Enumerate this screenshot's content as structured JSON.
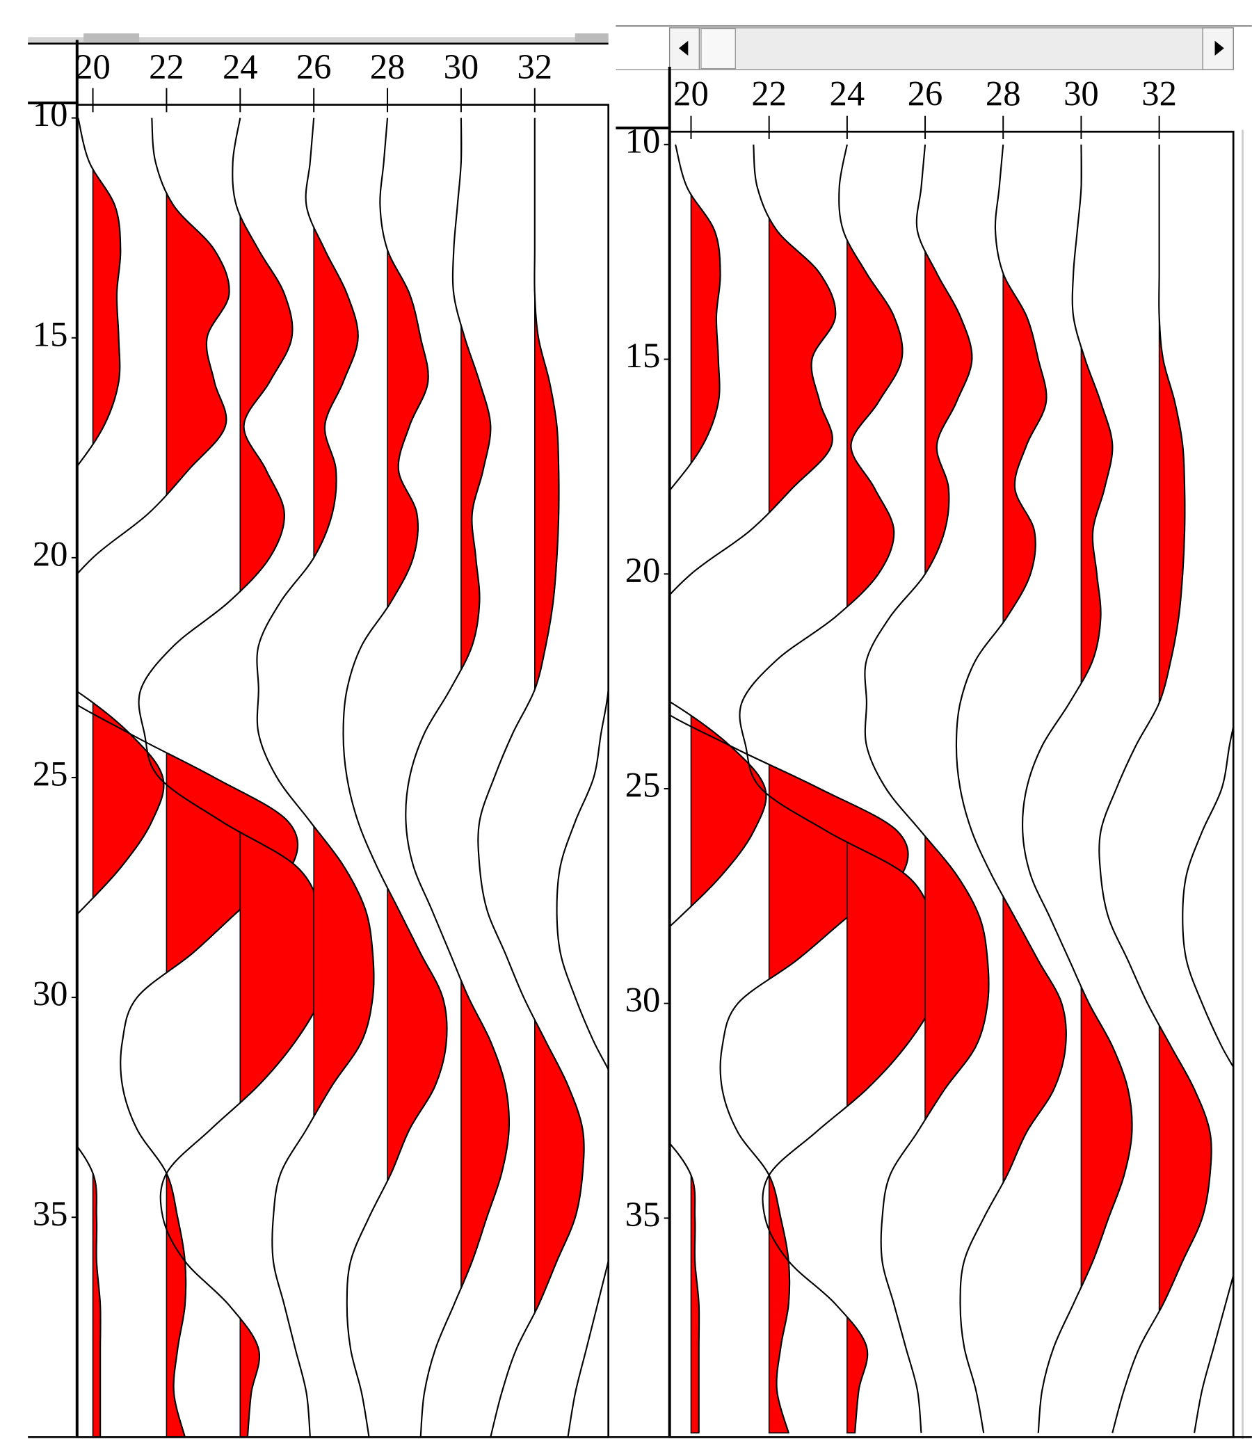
{
  "chart_data": [
    {
      "type": "wiggle",
      "y_inverted": true,
      "fill_color": "#ff0000",
      "line_color": "#000000",
      "xlim": [
        19.57,
        34.0
      ],
      "ylim": [
        9.7,
        40.0
      ],
      "xticks": [
        20,
        22,
        24,
        26,
        28,
        30,
        32
      ],
      "yticks": [
        10,
        15,
        20,
        25,
        30,
        35
      ],
      "y": [
        10,
        11,
        12,
        13,
        14,
        15,
        16,
        17,
        18,
        19,
        20,
        21,
        22,
        23,
        24,
        25,
        26,
        27,
        28,
        29,
        30,
        31,
        32,
        33,
        34,
        35,
        36,
        37,
        38,
        39,
        40
      ],
      "series": [
        {
          "position": 20,
          "values": [
            -0.4,
            -0.1,
            0.6,
            0.75,
            0.65,
            0.7,
            0.7,
            0.3,
            -0.5,
            -1.5,
            -2.5,
            -3,
            -2.5,
            -0.5,
            1.0,
            1.9,
            1.6,
            0.8,
            -0.3,
            -1.5,
            -2.5,
            -2.5,
            -2,
            -0.8,
            0,
            0.1,
            0.1,
            0.2,
            0.2,
            0.2,
            0.2
          ]
        },
        {
          "position": 22,
          "values": [
            -0.4,
            -0.3,
            0.2,
            1.3,
            1.7,
            1.1,
            1.3,
            1.6,
            0.6,
            -0.5,
            -2,
            -3,
            -3.5,
            -3,
            -1,
            1.3,
            3.3,
            3.4,
            2,
            0.7,
            -0.8,
            -1.2,
            -1.2,
            -0.8,
            0,
            0.3,
            0.5,
            0.5,
            0.3,
            0.2,
            0.5
          ]
        },
        {
          "position": 24,
          "values": [
            0,
            -0.2,
            -0.1,
            0.5,
            1.2,
            1.4,
            0.8,
            0.1,
            0.7,
            1.2,
            0.8,
            -0.3,
            -1.8,
            -2.7,
            -2.6,
            -2.2,
            -0.5,
            1.5,
            2.2,
            2.5,
            2.2,
            1.5,
            0.5,
            -0.8,
            -2,
            -2.1,
            -1.5,
            -0.3,
            0.5,
            0.3,
            0.2
          ]
        },
        {
          "position": 26,
          "values": [
            0,
            -0.1,
            -0.2,
            0.3,
            0.9,
            1.2,
            0.8,
            0.3,
            0.6,
            0.5,
            0,
            -0.9,
            -1.5,
            -1.5,
            -1.5,
            -1.0,
            -0.1,
            0.8,
            1.4,
            1.6,
            1.6,
            1.3,
            0.5,
            -0.2,
            -0.9,
            -1.1,
            -1.1,
            -0.8,
            -0.5,
            -0.2,
            -0.1
          ]
        },
        {
          "position": 28,
          "values": [
            0,
            -0.1,
            -0.2,
            0,
            0.6,
            0.9,
            1.1,
            0.6,
            0.3,
            0.8,
            0.7,
            0.1,
            -0.7,
            -1.1,
            -1.2,
            -1.1,
            -0.8,
            -0.3,
            0.3,
            0.9,
            1.5,
            1.6,
            1.3,
            0.6,
            0.1,
            -0.5,
            -1,
            -1.1,
            -1,
            -0.7,
            -0.5
          ]
        },
        {
          "position": 30,
          "values": [
            0,
            0,
            -0.1,
            -0.2,
            -0.2,
            0.1,
            0.5,
            0.8,
            0.6,
            0.3,
            0.4,
            0.5,
            0.3,
            -0.3,
            -1,
            -1.4,
            -1.5,
            -1.3,
            -0.8,
            -0.3,
            0.2,
            0.8,
            1.2,
            1.3,
            1.1,
            0.7,
            0.3,
            -0.2,
            -0.7,
            -1,
            -1.1
          ]
        },
        {
          "position": 32,
          "values": [
            0,
            0,
            0,
            0,
            0,
            0.1,
            0.4,
            0.6,
            0.65,
            0.65,
            0.6,
            0.5,
            0.3,
            0,
            -0.6,
            -1.1,
            -1.5,
            -1.5,
            -1.3,
            -0.8,
            -0.3,
            0.3,
            0.9,
            1.3,
            1.3,
            1.1,
            0.6,
            0.1,
            -0.5,
            -0.9,
            -1.2
          ]
        },
        {
          "position": 34,
          "values": [
            0,
            0,
            0,
            0,
            0,
            0,
            0,
            0,
            0,
            0,
            0,
            0,
            0,
            0,
            -0.2,
            -0.4,
            -0.9,
            -1.3,
            -1.4,
            -1.3,
            -0.9,
            -0.4,
            0.2,
            0.5,
            0.5,
            0.3,
            0,
            -0.3,
            -0.6,
            -0.9,
            -1.1
          ]
        }
      ]
    },
    {
      "type": "wiggle",
      "y_inverted": true,
      "fill_color": "#ff0000",
      "line_color": "#000000",
      "xlim": [
        19.45,
        33.9
      ],
      "ylim": [
        9.7,
        40.1
      ],
      "xticks": [
        20,
        22,
        24,
        26,
        28,
        30,
        32
      ],
      "yticks": [
        10,
        15,
        20,
        25,
        30,
        35
      ],
      "y": [
        10,
        11,
        12,
        13,
        14,
        15,
        16,
        17,
        18,
        19,
        20,
        21,
        22,
        23,
        24,
        25,
        26,
        27,
        28,
        29,
        30,
        31,
        32,
        33,
        34,
        35,
        36,
        37,
        38,
        39,
        40
      ],
      "series": [
        {
          "position": 20,
          "values": [
            -0.4,
            -0.1,
            0.6,
            0.75,
            0.65,
            0.7,
            0.7,
            0.3,
            -0.5,
            -1.5,
            -2.5,
            -3,
            -2.5,
            -0.5,
            1.0,
            1.9,
            1.6,
            0.8,
            -0.3,
            -1.5,
            -2.5,
            -2.5,
            -2,
            -0.8,
            0,
            0.1,
            0.1,
            0.2,
            0.2,
            0.2,
            0.2
          ]
        },
        {
          "position": 22,
          "values": [
            -0.4,
            -0.3,
            0.2,
            1.3,
            1.7,
            1.1,
            1.3,
            1.6,
            0.6,
            -0.5,
            -2,
            -3,
            -3.5,
            -3,
            -1,
            1.3,
            3.3,
            3.4,
            2,
            0.7,
            -0.8,
            -1.2,
            -1.2,
            -0.8,
            0,
            0.3,
            0.5,
            0.5,
            0.3,
            0.2,
            0.5
          ]
        },
        {
          "position": 24,
          "values": [
            0,
            -0.2,
            -0.1,
            0.5,
            1.2,
            1.4,
            0.8,
            0.1,
            0.7,
            1.2,
            0.8,
            -0.3,
            -1.8,
            -2.7,
            -2.6,
            -2.2,
            -0.5,
            1.5,
            2.2,
            2.5,
            2.2,
            1.5,
            0.5,
            -0.8,
            -2,
            -2.1,
            -1.5,
            -0.3,
            0.5,
            0.3,
            0.2
          ]
        },
        {
          "position": 26,
          "values": [
            0,
            -0.1,
            -0.2,
            0.3,
            0.9,
            1.2,
            0.8,
            0.3,
            0.6,
            0.5,
            0,
            -0.9,
            -1.5,
            -1.5,
            -1.5,
            -1.0,
            -0.1,
            0.8,
            1.4,
            1.6,
            1.6,
            1.3,
            0.5,
            -0.2,
            -0.9,
            -1.1,
            -1.1,
            -0.8,
            -0.5,
            -0.2,
            -0.1
          ]
        },
        {
          "position": 28,
          "values": [
            0,
            -0.1,
            -0.2,
            0,
            0.6,
            0.9,
            1.1,
            0.6,
            0.3,
            0.8,
            0.7,
            0.1,
            -0.7,
            -1.1,
            -1.2,
            -1.1,
            -0.8,
            -0.3,
            0.3,
            0.9,
            1.5,
            1.6,
            1.3,
            0.6,
            0.1,
            -0.5,
            -1,
            -1.1,
            -1,
            -0.7,
            -0.5
          ]
        },
        {
          "position": 30,
          "values": [
            0,
            0,
            -0.1,
            -0.2,
            -0.2,
            0.1,
            0.5,
            0.8,
            0.6,
            0.3,
            0.4,
            0.5,
            0.3,
            -0.3,
            -1,
            -1.4,
            -1.5,
            -1.3,
            -0.8,
            -0.3,
            0.2,
            0.8,
            1.2,
            1.3,
            1.1,
            0.7,
            0.3,
            -0.2,
            -0.7,
            -1,
            -1.1
          ]
        },
        {
          "position": 32,
          "values": [
            0,
            0,
            0,
            0,
            0,
            0.1,
            0.4,
            0.6,
            0.65,
            0.65,
            0.6,
            0.5,
            0.3,
            0,
            -0.6,
            -1.1,
            -1.5,
            -1.5,
            -1.3,
            -0.8,
            -0.3,
            0.3,
            0.9,
            1.3,
            1.3,
            1.1,
            0.6,
            0.1,
            -0.5,
            -0.9,
            -1.2
          ]
        },
        {
          "position": 34,
          "values": [
            0,
            0,
            0,
            0,
            0,
            0,
            0,
            0,
            0,
            0,
            0,
            0,
            0,
            0,
            -0.2,
            -0.4,
            -0.9,
            -1.3,
            -1.4,
            -1.3,
            -0.9,
            -0.4,
            0.2,
            0.5,
            0.5,
            0.3,
            0,
            -0.3,
            -0.6,
            -0.9,
            -1.1
          ]
        }
      ]
    }
  ]
}
